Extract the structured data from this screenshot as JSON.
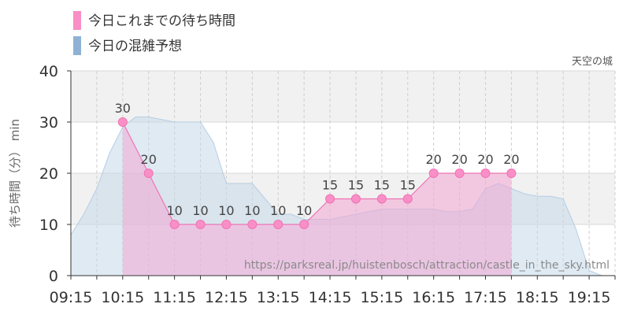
{
  "chart_data": {
    "type": "area",
    "subtitle": "天空の城",
    "ylabel": "待ち時間（分） min",
    "ylim": [
      0,
      40
    ],
    "yticks": [
      "0",
      "10",
      "20",
      "30",
      "40"
    ],
    "xticks": [
      "09:15",
      "10:15",
      "11:15",
      "12:15",
      "13:15",
      "14:15",
      "15:15",
      "16:15",
      "17:15",
      "18:15",
      "19:15"
    ],
    "grid": true,
    "legend_position": "top-left",
    "source_text": "https://parksreal.jp/huistenbosch/attraction/castle_in_the_sky.html",
    "series": [
      {
        "name": "今日これまでの待ち時間",
        "kind": "actual",
        "color": "#f98fc6",
        "x": [
          "10:15",
          "10:45",
          "11:15",
          "11:45",
          "12:15",
          "12:45",
          "13:15",
          "13:45",
          "14:15",
          "14:45",
          "15:15",
          "15:45",
          "16:15",
          "16:45",
          "17:15",
          "17:45"
        ],
        "values": [
          30,
          20,
          10,
          10,
          10,
          10,
          10,
          10,
          15,
          15,
          15,
          15,
          20,
          20,
          20,
          20
        ]
      },
      {
        "name": "今日の混雑予想",
        "kind": "forecast",
        "color": "#8fb2d4",
        "x": [
          "09:15",
          "09:30",
          "09:45",
          "10:00",
          "10:15",
          "10:30",
          "10:45",
          "11:00",
          "11:15",
          "11:30",
          "11:45",
          "12:00",
          "12:15",
          "12:30",
          "12:45",
          "13:00",
          "13:15",
          "13:30",
          "13:45",
          "14:00",
          "14:15",
          "14:30",
          "14:45",
          "15:00",
          "15:15",
          "15:30",
          "15:45",
          "16:00",
          "16:15",
          "16:30",
          "16:45",
          "17:00",
          "17:15",
          "17:30",
          "17:45",
          "18:00",
          "18:15",
          "18:30",
          "18:45",
          "19:00",
          "19:15",
          "19:30",
          "19:45"
        ],
        "values": [
          8,
          12,
          17,
          24,
          29,
          31,
          31,
          30.5,
          30,
          30,
          30,
          26,
          18,
          18,
          18,
          15,
          12,
          12,
          11,
          11,
          11,
          11.5,
          12,
          12.5,
          13,
          13,
          13,
          13,
          13,
          12.5,
          12.5,
          13,
          17,
          18,
          17,
          16,
          15.5,
          15.5,
          15,
          9,
          1,
          0,
          0
        ]
      }
    ]
  }
}
